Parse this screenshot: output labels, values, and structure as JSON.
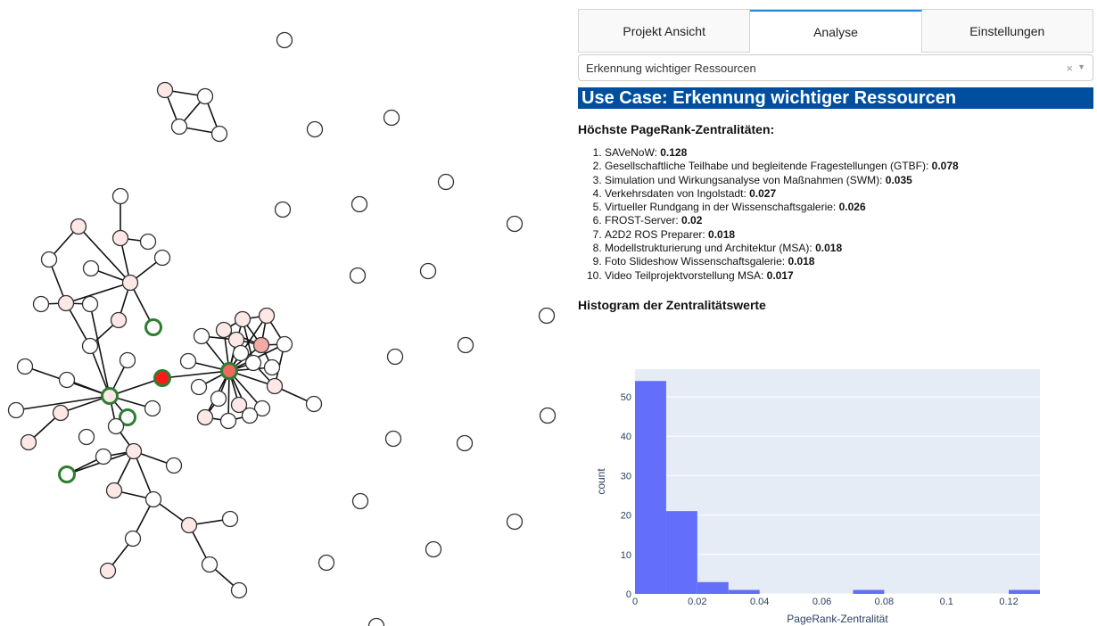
{
  "tabs": [
    "Projekt Ansicht",
    "Analyse",
    "Einstellungen"
  ],
  "active_tab": "Analyse",
  "dropdown": {
    "value": "Erkennung wichtiger Ressourcen",
    "clear_icon": "×",
    "arrow_icon": "▼"
  },
  "use_case_title": "Use Case: Erkennung wichtiger Ressourcen",
  "ranking_title": "Höchste PageRank-Zentralitäten:",
  "ranking": [
    {
      "name": "SAVeNoW: ",
      "value": "0.128"
    },
    {
      "name": "Gesellschaftliche Teilhabe und begleitende Fragestellungen (GTBF): ",
      "value": "0.078"
    },
    {
      "name": "Simulation und Wirkungsanalyse von Maßnahmen (SWM): ",
      "value": "0.035"
    },
    {
      "name": "Verkehrsdaten von Ingolstadt: ",
      "value": "0.027"
    },
    {
      "name": "Virtueller Rundgang in der Wissenschaftsgalerie: ",
      "value": "0.026"
    },
    {
      "name": "FROST-Server: ",
      "value": "0.02"
    },
    {
      "name": "A2D2 ROS Preparer: ",
      "value": "0.018"
    },
    {
      "name": "Modellstrukturierung und Architektur (MSA): ",
      "value": "0.018"
    },
    {
      "name": "Foto Slideshow Wissenschaftsgalerie: ",
      "value": "0.018"
    },
    {
      "name": "Video Teilprojektvorstellung MSA: ",
      "value": "0.017"
    }
  ],
  "histogram_title": "Histogram der Zentralitätswerte",
  "colors": {
    "node_default": "#ffffff",
    "node_light": "#fde8e6",
    "node_medium": "#f4aaa4",
    "node_strong": "#ec6b60",
    "node_max": "#ff1a1a",
    "highlight_ring": "#2e7d32",
    "bar": "#636efa",
    "plot_bg": "#e5ecf6",
    "header_bg": "#004f9f",
    "tab_accent": "#1e88e5"
  },
  "chart_data": {
    "type": "bar",
    "xlabel": "PageRank-Zentralität",
    "ylabel": "count",
    "x_ticks": [
      "0",
      "0.02",
      "0.04",
      "0.06",
      "0.08",
      "0.1",
      "0.12"
    ],
    "y_ticks": [
      "0",
      "10",
      "20",
      "30",
      "40",
      "50"
    ],
    "xlim": [
      0,
      0.13
    ],
    "ylim": [
      0,
      57
    ],
    "bins": [
      {
        "x0": 0.0,
        "x1": 0.01,
        "count": 54
      },
      {
        "x0": 0.01,
        "x1": 0.02,
        "count": 21
      },
      {
        "x0": 0.02,
        "x1": 0.03,
        "count": 3
      },
      {
        "x0": 0.03,
        "x1": 0.04,
        "count": 1
      },
      {
        "x0": 0.07,
        "x1": 0.08,
        "count": 1
      },
      {
        "x0": 0.12,
        "x1": 0.13,
        "count": 1
      }
    ]
  }
}
